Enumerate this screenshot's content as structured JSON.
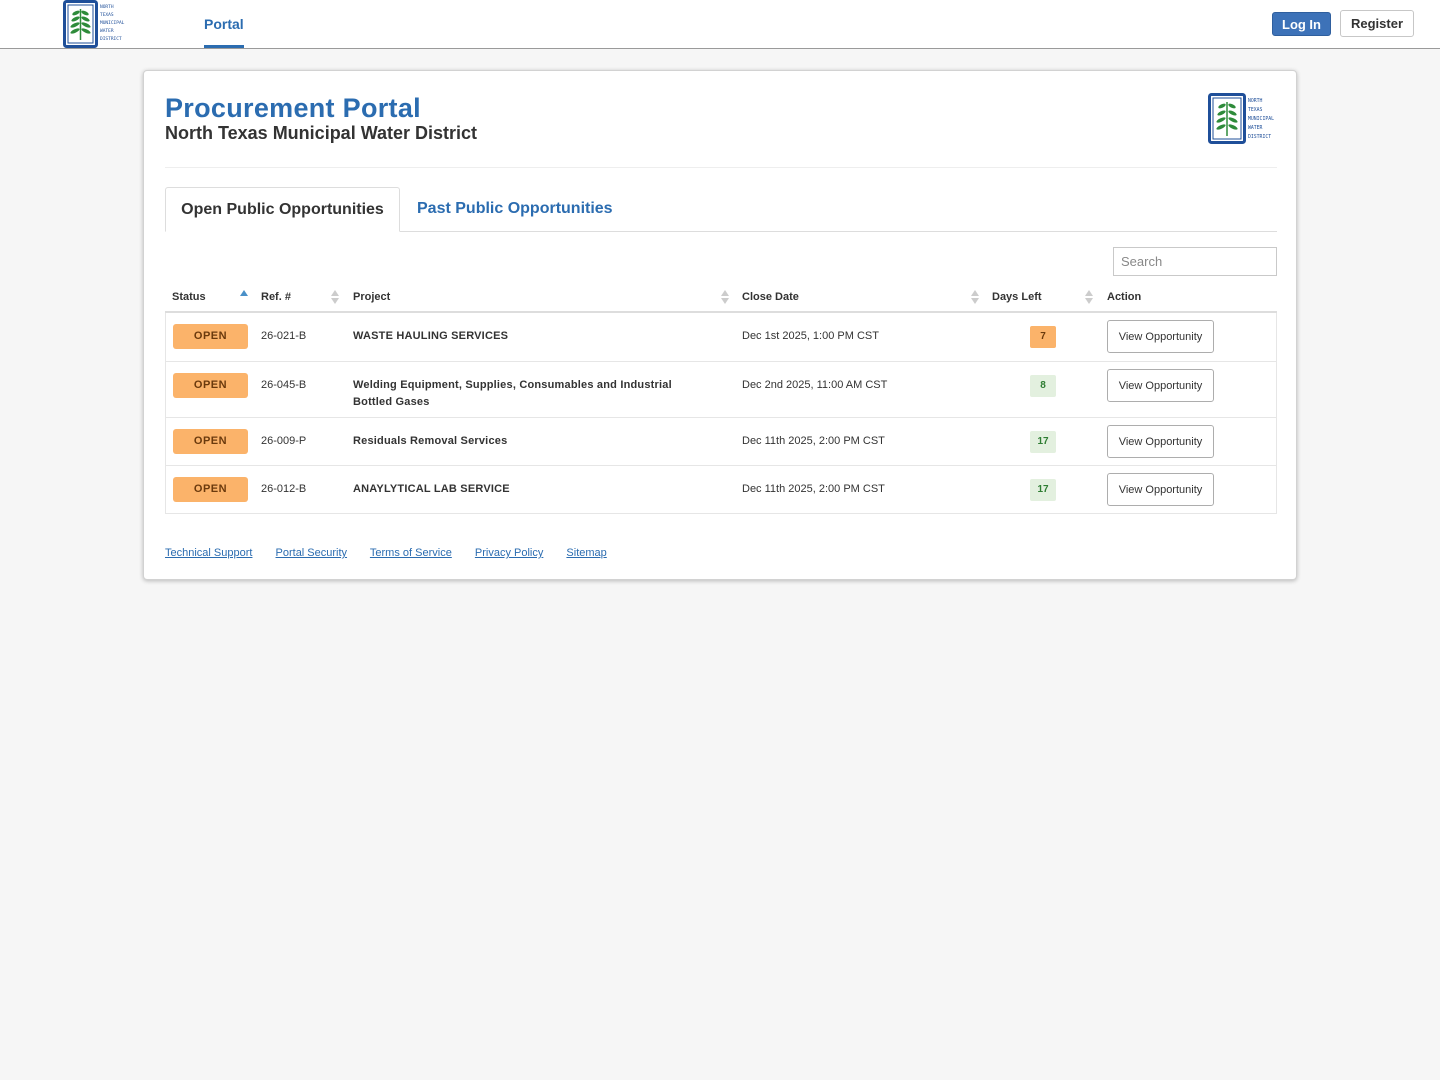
{
  "nav": {
    "portal_label": "Portal",
    "login_label": "Log In",
    "register_label": "Register"
  },
  "header": {
    "title": "Procurement Portal",
    "subtitle": "North Texas Municipal Water District"
  },
  "logo": {
    "lines": [
      "NORTH",
      "TEXAS",
      "MUNICIPAL",
      "WATER",
      "DISTRICT"
    ],
    "brand_blue": "#1f4f99",
    "leaf_green": "#2e8b3a"
  },
  "tabs": {
    "open_label": "Open Public Opportunities",
    "past_label": "Past Public Opportunities"
  },
  "search": {
    "placeholder": "Search"
  },
  "table": {
    "headers": [
      "Status",
      "Ref. #",
      "Project",
      "Close Date",
      "Days Left",
      "Action"
    ],
    "rows": [
      {
        "status": "OPEN",
        "ref": "26-021-B",
        "project": "WASTE HAULING SERVICES",
        "close_date": "Dec 1st 2025, 1:00 PM CST",
        "days_left": "7",
        "days_level": "warn",
        "action": "View Opportunity"
      },
      {
        "status": "OPEN",
        "ref": "26-045-B",
        "project": "Welding Equipment, Supplies, Consumables and Industrial Bottled Gases",
        "close_date": "Dec 2nd 2025, 11:00 AM CST",
        "days_left": "8",
        "days_level": "ok",
        "action": "View Opportunity"
      },
      {
        "status": "OPEN",
        "ref": "26-009-P",
        "project": "Residuals Removal Services",
        "close_date": "Dec 11th 2025, 2:00 PM CST",
        "days_left": "17",
        "days_level": "ok",
        "action": "View Opportunity"
      },
      {
        "status": "OPEN",
        "ref": "26-012-B",
        "project": "ANAYLYTICAL LAB SERVICE",
        "close_date": "Dec 11th 2025, 2:00 PM CST",
        "days_left": "17",
        "days_level": "ok",
        "action": "View Opportunity"
      }
    ]
  },
  "footer": {
    "links": [
      "Technical Support",
      "Portal Security",
      "Terms of Service",
      "Privacy Policy",
      "Sitemap"
    ]
  },
  "colors": {
    "accent": "#2b6cb0",
    "open_badge": "#fbb36a",
    "days_warn": "#fbb36a",
    "days_ok": "#e3f0df"
  }
}
